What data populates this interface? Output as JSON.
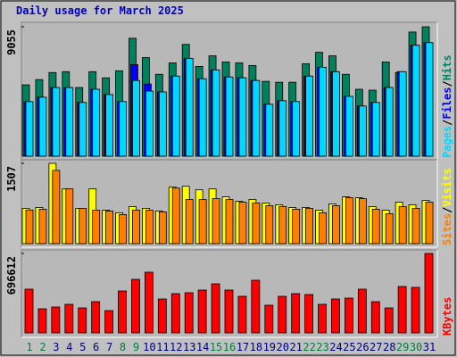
{
  "title": "Daily usage for March 2025",
  "chart_data": {
    "type": "bar",
    "categories": [
      "1",
      "2",
      "3",
      "4",
      "5",
      "6",
      "7",
      "8",
      "9",
      "10",
      "11",
      "12",
      "13",
      "14",
      "15",
      "16",
      "17",
      "18",
      "19",
      "20",
      "21",
      "22",
      "23",
      "24",
      "25",
      "26",
      "27",
      "28",
      "29",
      "30",
      "31"
    ],
    "category_color": "#000080",
    "weekend_color": "#008040",
    "weekend_indices": [
      0,
      1,
      7,
      8,
      14,
      15,
      21,
      22,
      28,
      29
    ],
    "separator": "/",
    "panels": [
      {
        "ylim": [
          0,
          9055
        ],
        "yticks": [
          9055
        ],
        "series": [
          {
            "name": "Hits",
            "color": "#00805c",
            "values": [
              4990,
              5359,
              5852,
              5914,
              4805,
              5914,
              5482,
              5975,
              8254,
              6899,
              5729,
              6530,
              7823,
              6283,
              7022,
              6591,
              6530,
              6345,
              5236,
              5174,
              5174,
              6468,
              7269,
              7022,
              5729,
              4682,
              4620,
              6591,
              5852,
              8686,
              9055
            ]
          },
          {
            "name": "Files",
            "color": "#0000ff",
            "values": [
              3819,
              4127,
              4805,
              4805,
              3758,
              4682,
              4312,
              3819,
              6406,
              5051,
              4497,
              5605,
              6837,
              5421,
              6037,
              5544,
              5482,
              5298,
              3634,
              3881,
              3819,
              5605,
              6222,
              5914,
              4189,
              3511,
              3758,
              4805,
              5914,
              7762,
              7946
            ]
          },
          {
            "name": "Pages",
            "color": "#00d8ff",
            "values": [
              3819,
              4127,
              4805,
              4805,
              3758,
              4682,
              4312,
              3819,
              5298,
              4558,
              4497,
              5605,
              6837,
              5421,
              6037,
              5544,
              5482,
              5298,
              3634,
              3881,
              3819,
              5605,
              6222,
              5914,
              4189,
              3511,
              3758,
              4805,
              5914,
              7762,
              7946
            ]
          }
        ]
      },
      {
        "ylim": [
          0,
          1507
        ],
        "yticks": [
          1507
        ],
        "series": [
          {
            "name": "Visits",
            "color": "#ffff00",
            "values": [
              662,
              679,
              1507,
              1027,
              662,
              1027,
              629,
              580,
              696,
              662,
              613,
              1060,
              1076,
              1010,
              1027,
              878,
              795,
              828,
              762,
              729,
              679,
              679,
              629,
              745,
              878,
              861,
              696,
              629,
              778,
              729,
              811
            ]
          },
          {
            "name": "Sites",
            "color": "#ff8000",
            "values": [
              629,
              646,
              1374,
              1027,
              662,
              629,
              613,
              546,
              629,
              629,
              596,
              1043,
              828,
              828,
              845,
              828,
              778,
              762,
              712,
              696,
              646,
              662,
              580,
              712,
              861,
              845,
              646,
              563,
              696,
              662,
              778
            ]
          }
        ]
      },
      {
        "ylim": [
          0,
          696612
        ],
        "yticks": [
          696612
        ],
        "series": [
          {
            "name": "KBytes",
            "color": "#ff0000",
            "values": [
              383524,
              211330,
              226984,
              250465,
              219157,
              273946,
              195677,
              367869,
              469626,
              532242,
              297428,
              344393,
              352220,
              375697,
              430490,
              375697,
              320909,
              461799,
              242638,
              320909,
              344393,
              336566,
              250465,
              297428,
              305255,
              383524,
              273946,
              219157,
              407010,
              399183,
              696612
            ]
          }
        ]
      }
    ]
  }
}
